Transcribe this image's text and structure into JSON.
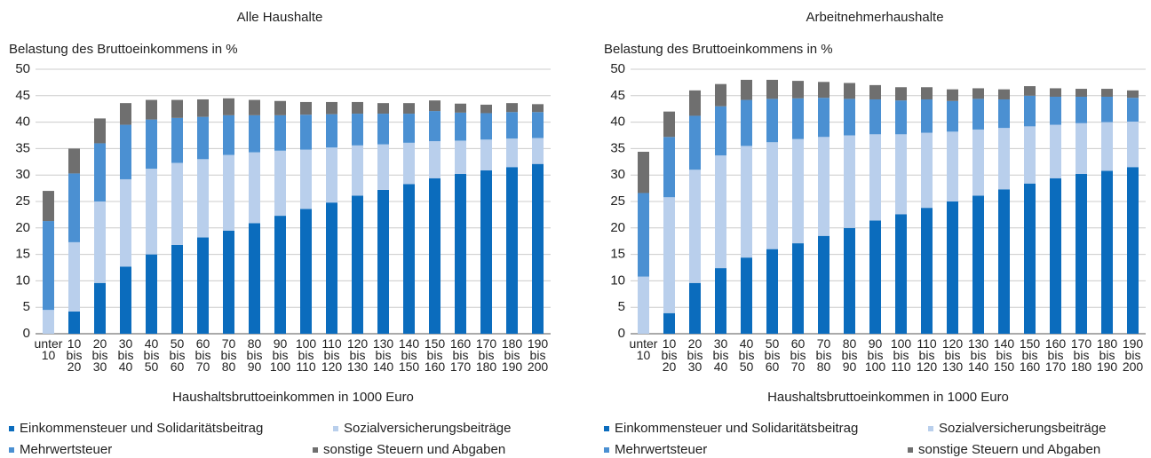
{
  "chart_data": [
    {
      "type": "bar",
      "stacked": true,
      "title": "Alle Haushalte",
      "y_label": "Belastung des Bruttoeinkommens in %",
      "x_label": "Haushaltsbruttoeinkommen in 1000 Euro",
      "categories": [
        "unter 10",
        "10 bis 20",
        "20 bis 30",
        "30 bis 40",
        "40 bis 50",
        "50 bis 60",
        "60 bis 70",
        "70 bis 80",
        "80 bis 90",
        "90 bis 100",
        "100 bis 110",
        "110 bis 120",
        "120 bis 130",
        "130 bis 140",
        "140 bis 150",
        "150 bis 160",
        "160 bis 170",
        "170 bis 180",
        "180 bis 190",
        "190 bis 200"
      ],
      "series": [
        {
          "name": "Einkommensteuer und Solidaritätsbeitrag",
          "color": "#0b6cbd",
          "values": [
            0,
            4.2,
            9.6,
            12.7,
            15,
            16.8,
            18.2,
            19.5,
            20.9,
            22.3,
            23.6,
            24.8,
            26.1,
            27.2,
            28.3,
            29.4,
            30.2,
            30.9,
            31.5,
            32.1
          ]
        },
        {
          "name": "Sozialversicherungsbeiträge",
          "color": "#b9cfec",
          "values": [
            4.5,
            13.1,
            15.4,
            16.5,
            16.2,
            15.5,
            14.8,
            14.3,
            13.4,
            12.3,
            11.2,
            10.4,
            9.5,
            8.6,
            7.8,
            7,
            6.3,
            5.8,
            5.4,
            4.9
          ]
        },
        {
          "name": "Mehrwertsteuer",
          "color": "#4b90d2",
          "values": [
            16.8,
            13,
            11,
            10.3,
            9.3,
            8.5,
            8,
            7.5,
            7,
            6.7,
            6.6,
            6.3,
            6,
            5.8,
            5.5,
            5.7,
            5.3,
            5,
            5,
            4.9
          ]
        },
        {
          "name": "sonstige Steuern und Abgaben",
          "color": "#6f6f6f",
          "values": [
            5.7,
            4.7,
            4.7,
            4.1,
            3.7,
            3.4,
            3.3,
            3.2,
            2.9,
            2.7,
            2.4,
            2.3,
            2.2,
            2,
            2,
            2,
            1.7,
            1.6,
            1.7,
            1.5
          ]
        }
      ],
      "ylim": [
        0,
        50
      ],
      "yticks": [
        0,
        5,
        10,
        15,
        20,
        25,
        30,
        35,
        40,
        45,
        50
      ],
      "grid": true
    },
    {
      "type": "bar",
      "stacked": true,
      "title": "Arbeitnehmerhaushalte",
      "y_label": "Belastung des Bruttoeinkommens in %",
      "x_label": "Haushaltsbruttoeinkommen in 1000 Euro",
      "categories": [
        "unter 10",
        "10 bis 20",
        "20 bis 30",
        "30 bis 40",
        "40 bis 50",
        "50 bis 60",
        "60 bis 70",
        "70 bis 80",
        "80 bis 90",
        "90 bis 100",
        "100 bis 110",
        "110 bis 120",
        "120 bis 130",
        "130 bis 140",
        "140 bis 150",
        "150 bis 160",
        "160 bis 170",
        "170 bis 180",
        "180 bis 190",
        "190 bis 200"
      ],
      "series": [
        {
          "name": "Einkommensteuer und Solidaritätsbeitrag",
          "color": "#0b6cbd",
          "values": [
            0,
            3.9,
            9.6,
            12.4,
            14.4,
            16,
            17.1,
            18.5,
            20,
            21.4,
            22.6,
            23.8,
            25,
            26.1,
            27.3,
            28.4,
            29.4,
            30.2,
            30.8,
            31.5
          ]
        },
        {
          "name": "Sozialversicherungsbeiträge",
          "color": "#b9cfec",
          "values": [
            10.8,
            21.9,
            21.4,
            21.3,
            21.1,
            20.2,
            19.7,
            18.7,
            17.5,
            16.3,
            15.1,
            14.2,
            13.2,
            12.5,
            11.6,
            10.8,
            10.1,
            9.6,
            9.2,
            8.6
          ]
        },
        {
          "name": "Mehrwertsteuer",
          "color": "#4b90d2",
          "values": [
            15.8,
            11.4,
            10.2,
            9.3,
            8.7,
            8.2,
            7.7,
            7.4,
            6.9,
            6.6,
            6.4,
            6.3,
            5.8,
            5.8,
            5.4,
            5.8,
            5.3,
            5,
            4.8,
            4.5
          ]
        },
        {
          "name": "sonstige Steuern und Abgaben",
          "color": "#6f6f6f",
          "values": [
            7.8,
            4.8,
            4.8,
            4.2,
            3.8,
            3.6,
            3.3,
            3,
            3,
            2.7,
            2.5,
            2.3,
            2.2,
            2,
            1.9,
            1.8,
            1.6,
            1.5,
            1.5,
            1.4
          ]
        }
      ],
      "ylim": [
        0,
        50
      ],
      "yticks": [
        0,
        5,
        10,
        15,
        20,
        25,
        30,
        35,
        40,
        45,
        50
      ],
      "grid": true
    }
  ]
}
